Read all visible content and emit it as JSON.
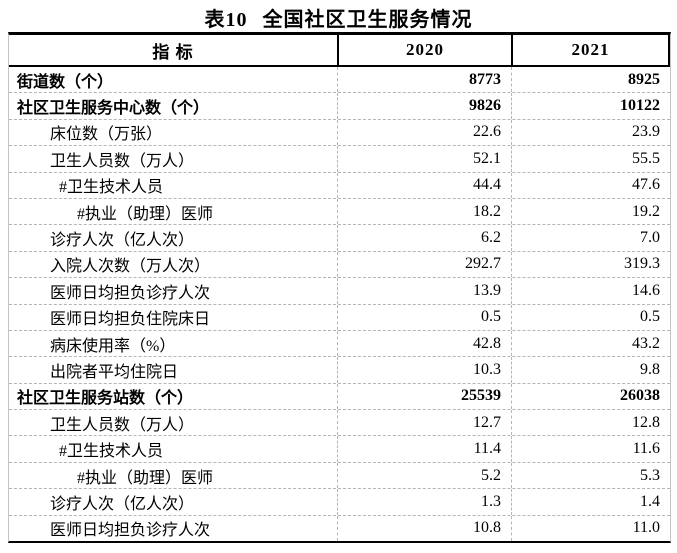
{
  "title": {
    "label": "表10",
    "text": "全国社区卫生服务情况"
  },
  "table": {
    "columns": [
      "指 标",
      "2020",
      "2021"
    ],
    "rows": [
      {
        "label": "街道数（个）",
        "v2020": "8773",
        "v2021": "8925",
        "bold": true,
        "indent": 0
      },
      {
        "label": "社区卫生服务中心数（个）",
        "v2020": "9826",
        "v2021": "10122",
        "bold": true,
        "indent": 0
      },
      {
        "label": "床位数（万张）",
        "v2020": "22.6",
        "v2021": "23.9",
        "bold": false,
        "indent": 1
      },
      {
        "label": "卫生人员数（万人）",
        "v2020": "52.1",
        "v2021": "55.5",
        "bold": false,
        "indent": 1
      },
      {
        "label": "#卫生技术人员",
        "v2020": "44.4",
        "v2021": "47.6",
        "bold": false,
        "indent": 2
      },
      {
        "label": "#执业（助理）医师",
        "v2020": "18.2",
        "v2021": "19.2",
        "bold": false,
        "indent": 3
      },
      {
        "label": "诊疗人次（亿人次）",
        "v2020": "6.2",
        "v2021": "7.0",
        "bold": false,
        "indent": 1
      },
      {
        "label": "入院人次数（万人次）",
        "v2020": "292.7",
        "v2021": "319.3",
        "bold": false,
        "indent": 1
      },
      {
        "label": "医师日均担负诊疗人次",
        "v2020": "13.9",
        "v2021": "14.6",
        "bold": false,
        "indent": 1
      },
      {
        "label": "医师日均担负住院床日",
        "v2020": "0.5",
        "v2021": "0.5",
        "bold": false,
        "indent": 1
      },
      {
        "label": "病床使用率（%）",
        "v2020": "42.8",
        "v2021": "43.2",
        "bold": false,
        "indent": 1
      },
      {
        "label": "出院者平均住院日",
        "v2020": "10.3",
        "v2021": "9.8",
        "bold": false,
        "indent": 1
      },
      {
        "label": "社区卫生服务站数（个）",
        "v2020": "25539",
        "v2021": "26038",
        "bold": true,
        "indent": 0
      },
      {
        "label": "卫生人员数（万人）",
        "v2020": "12.7",
        "v2021": "12.8",
        "bold": false,
        "indent": 1
      },
      {
        "label": "#卫生技术人员",
        "v2020": "11.4",
        "v2021": "11.6",
        "bold": false,
        "indent": 2
      },
      {
        "label": "#执业（助理）医师",
        "v2020": "5.2",
        "v2021": "5.3",
        "bold": false,
        "indent": 3
      },
      {
        "label": "诊疗人次（亿人次）",
        "v2020": "1.3",
        "v2021": "1.4",
        "bold": false,
        "indent": 1
      },
      {
        "label": "医师日均担负诊疗人次",
        "v2020": "10.8",
        "v2021": "11.0",
        "bold": false,
        "indent": 1
      }
    ]
  },
  "colors": {
    "text": "#000000",
    "heavy_border": "#000000",
    "gridline": "#b5b5b5",
    "background": "#ffffff"
  }
}
